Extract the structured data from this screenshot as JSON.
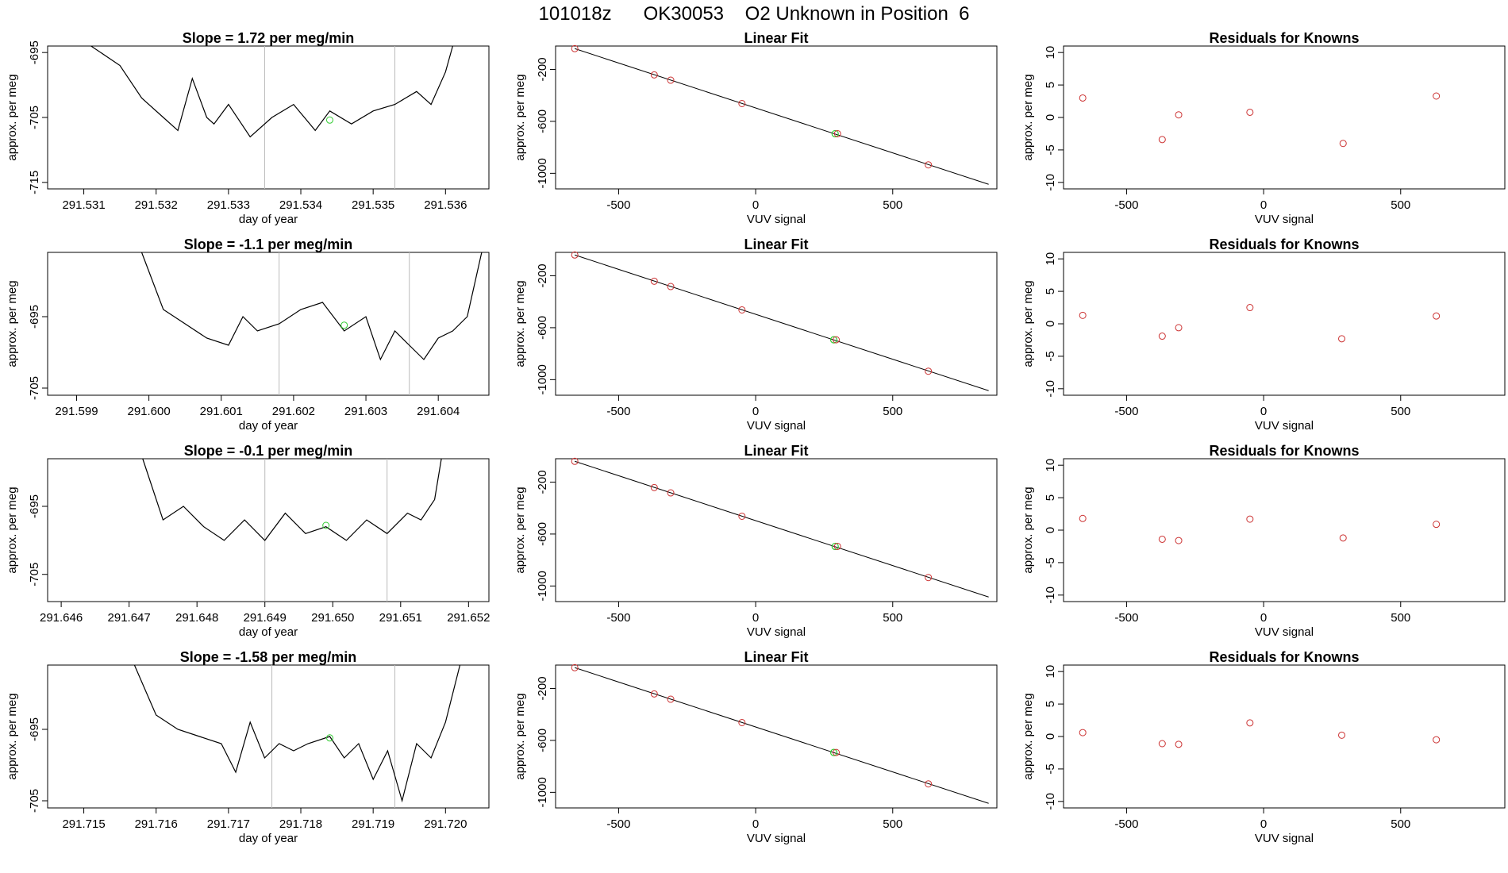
{
  "header": {
    "title": "101018z      OK30053    O2 Unknown in Position  6"
  },
  "chart_data": [
    {
      "type": "line",
      "panel": "timeseries",
      "title": "Slope =  1.72  per meg/min",
      "xlabel": "day of year",
      "ylabel": "approx. per meg",
      "xlim": [
        291.5305,
        291.5366
      ],
      "ylim": [
        -716,
        -694
      ],
      "xticks": [
        "291.531",
        "291.532",
        "291.533",
        "291.534",
        "291.535",
        "291.536"
      ],
      "yticks": [
        "-695",
        "-705",
        "-715"
      ],
      "window": [
        291.5335,
        291.5353
      ],
      "marker": {
        "x": 291.5344,
        "y": -705.4,
        "color": "#33cc33"
      },
      "series": [
        {
          "color": "#000000",
          "x": [
            291.5311,
            291.5315,
            291.5318,
            291.5321,
            291.5323,
            291.5325,
            291.5327,
            291.5328,
            291.533,
            291.5333,
            291.5336,
            291.5339,
            291.5342,
            291.5344,
            291.5347,
            291.535,
            291.5353,
            291.5356,
            291.5358,
            291.536,
            291.5361
          ],
          "y": [
            -694,
            -697,
            -702,
            -705,
            -707,
            -699,
            -705,
            -706,
            -703,
            -708,
            -705,
            -703,
            -707,
            -704,
            -706,
            -704,
            -703,
            -701,
            -703,
            -698,
            -694
          ]
        }
      ]
    },
    {
      "type": "scatter",
      "panel": "linear-fit",
      "title": "Linear Fit",
      "xlabel": "VUV signal",
      "ylabel": "approx. per meg",
      "xlim": [
        -730,
        880
      ],
      "ylim": [
        -1120,
        -20
      ],
      "xticks": [
        "-500",
        "0",
        "500"
      ],
      "yticks": [
        "-200",
        "-600",
        "-1000"
      ],
      "line": {
        "x": [
          -660,
          850
        ],
        "y": [
          -40,
          -1085
        ]
      },
      "points": {
        "x": [
          -660,
          -370,
          -310,
          -50,
          630
        ],
        "y": [
          -40,
          -242,
          -283,
          -463,
          -935
        ],
        "color": "#cc3333"
      },
      "unknown": {
        "x": 290,
        "y": -695,
        "color": "#33cc33"
      }
    },
    {
      "type": "scatter",
      "panel": "residuals",
      "title": "Residuals for Knowns",
      "xlabel": "VUV signal",
      "ylabel": "approx. per meg",
      "xlim": [
        -730,
        880
      ],
      "ylim": [
        -11,
        11
      ],
      "xticks": [
        "-500",
        "0",
        "500"
      ],
      "yticks": [
        "10",
        "5",
        "0",
        "-5",
        "-10"
      ],
      "points": {
        "x": [
          -660,
          -370,
          -310,
          -50,
          290,
          630
        ],
        "y": [
          3.0,
          -3.4,
          0.4,
          0.8,
          -4.0,
          3.3
        ],
        "color": "#cc3333"
      }
    },
    {
      "type": "line",
      "panel": "timeseries",
      "title": "Slope =  -1.1  per meg/min",
      "xlabel": "day of year",
      "ylabel": "approx. per meg",
      "xlim": [
        291.5986,
        291.6047
      ],
      "ylim": [
        -706,
        -686
      ],
      "xticks": [
        "291.599",
        "291.600",
        "291.601",
        "291.602",
        "291.603",
        "291.604"
      ],
      "yticks": [
        "-695",
        "-705"
      ],
      "window": [
        291.6018,
        291.6036
      ],
      "marker": {
        "x": 291.6027,
        "y": -696.2,
        "color": "#33cc33"
      },
      "series": [
        {
          "color": "#000000",
          "x": [
            291.5999,
            291.6002,
            291.6005,
            291.6008,
            291.6011,
            291.6013,
            291.6015,
            291.6018,
            291.6021,
            291.6024,
            291.6027,
            291.603,
            291.6032,
            291.6034,
            291.6036,
            291.6038,
            291.604,
            291.6042,
            291.6044,
            291.6046
          ],
          "y": [
            -686,
            -694,
            -696,
            -698,
            -699,
            -695,
            -697,
            -696,
            -694,
            -693,
            -697,
            -695,
            -701,
            -697,
            -699,
            -701,
            -698,
            -697,
            -695,
            -686
          ]
        }
      ]
    },
    {
      "type": "scatter",
      "panel": "linear-fit",
      "title": "Linear Fit",
      "xlabel": "VUV signal",
      "ylabel": "approx. per meg",
      "xlim": [
        -730,
        880
      ],
      "ylim": [
        -1120,
        -20
      ],
      "xticks": [
        "-500",
        "0",
        "500"
      ],
      "yticks": [
        "-200",
        "-600",
        "-1000"
      ],
      "line": {
        "x": [
          -660,
          850
        ],
        "y": [
          -40,
          -1085
        ]
      },
      "points": {
        "x": [
          -660,
          -370,
          -310,
          -50,
          630
        ],
        "y": [
          -40,
          -242,
          -283,
          -463,
          -935
        ],
        "color": "#cc3333"
      },
      "unknown": {
        "x": 285,
        "y": -693,
        "color": "#33cc33"
      }
    },
    {
      "type": "scatter",
      "panel": "residuals",
      "title": "Residuals for Knowns",
      "xlabel": "VUV signal",
      "ylabel": "approx. per meg",
      "xlim": [
        -730,
        880
      ],
      "ylim": [
        -11,
        11
      ],
      "xticks": [
        "-500",
        "0",
        "500"
      ],
      "yticks": [
        "10",
        "5",
        "0",
        "-5",
        "-10"
      ],
      "points": {
        "x": [
          -660,
          -370,
          -310,
          -50,
          285,
          630
        ],
        "y": [
          1.3,
          -1.9,
          -0.6,
          2.5,
          -2.3,
          1.2
        ],
        "color": "#cc3333"
      }
    },
    {
      "type": "line",
      "panel": "timeseries",
      "title": "Slope =  -0.1  per meg/min",
      "xlabel": "day of year",
      "ylabel": "approx. per meg",
      "xlim": [
        291.6458,
        291.6523
      ],
      "ylim": [
        -709,
        -688
      ],
      "xticks": [
        "291.646",
        "291.647",
        "291.648",
        "291.649",
        "291.650",
        "291.651",
        "291.652"
      ],
      "yticks": [
        "-695",
        "-705"
      ],
      "window": [
        291.649,
        291.6508
      ],
      "marker": {
        "x": 291.6499,
        "y": -697.8,
        "color": "#33cc33"
      },
      "series": [
        {
          "color": "#000000",
          "x": [
            291.6472,
            291.6475,
            291.6478,
            291.6481,
            291.6484,
            291.6487,
            291.649,
            291.6493,
            291.6496,
            291.6499,
            291.6502,
            291.6505,
            291.6508,
            291.6511,
            291.6513,
            291.6515,
            291.6516
          ],
          "y": [
            -688,
            -697,
            -695,
            -698,
            -700,
            -697,
            -700,
            -696,
            -699,
            -698,
            -700,
            -697,
            -699,
            -696,
            -697,
            -694,
            -688
          ]
        }
      ]
    },
    {
      "type": "scatter",
      "panel": "linear-fit",
      "title": "Linear Fit",
      "xlabel": "VUV signal",
      "ylabel": "approx. per meg",
      "xlim": [
        -730,
        880
      ],
      "ylim": [
        -1120,
        -20
      ],
      "xticks": [
        "-500",
        "0",
        "500"
      ],
      "yticks": [
        "-200",
        "-600",
        "-1000"
      ],
      "line": {
        "x": [
          -660,
          850
        ],
        "y": [
          -40,
          -1085
        ]
      },
      "points": {
        "x": [
          -660,
          -370,
          -310,
          -50,
          630
        ],
        "y": [
          -40,
          -242,
          -283,
          -463,
          -935
        ],
        "color": "#cc3333"
      },
      "unknown": {
        "x": 290,
        "y": -695,
        "color": "#33cc33"
      }
    },
    {
      "type": "scatter",
      "panel": "residuals",
      "title": "Residuals for Knowns",
      "xlabel": "VUV signal",
      "ylabel": "approx. per meg",
      "xlim": [
        -730,
        880
      ],
      "ylim": [
        -11,
        11
      ],
      "xticks": [
        "-500",
        "0",
        "500"
      ],
      "yticks": [
        "10",
        "5",
        "0",
        "-5",
        "-10"
      ],
      "points": {
        "x": [
          -660,
          -370,
          -310,
          -50,
          290,
          630
        ],
        "y": [
          1.8,
          -1.4,
          -1.6,
          1.7,
          -1.2,
          0.9
        ],
        "color": "#cc3333"
      }
    },
    {
      "type": "line",
      "panel": "timeseries",
      "title": "Slope =  -1.58  per meg/min",
      "xlabel": "day of year",
      "ylabel": "approx. per meg",
      "xlim": [
        291.7145,
        291.7206
      ],
      "ylim": [
        -706,
        -686
      ],
      "xticks": [
        "291.715",
        "291.716",
        "291.717",
        "291.718",
        "291.719",
        "291.720"
      ],
      "yticks": [
        "-695",
        "-705"
      ],
      "window": [
        291.7176,
        291.7193
      ],
      "marker": {
        "x": 291.7184,
        "y": -696.2,
        "color": "#33cc33"
      },
      "series": [
        {
          "color": "#000000",
          "x": [
            291.7157,
            291.716,
            291.7163,
            291.7166,
            291.7169,
            291.7171,
            291.7173,
            291.7175,
            291.7177,
            291.7179,
            291.7181,
            291.7184,
            291.7186,
            291.7188,
            291.719,
            291.7192,
            291.7194,
            291.7196,
            291.7198,
            291.72,
            291.7202
          ],
          "y": [
            -686,
            -693,
            -695,
            -696,
            -697,
            -701,
            -694,
            -699,
            -697,
            -698,
            -697,
            -696,
            -699,
            -697,
            -702,
            -698,
            -705,
            -697,
            -699,
            -694,
            -686
          ]
        }
      ]
    },
    {
      "type": "scatter",
      "panel": "linear-fit",
      "title": "Linear Fit",
      "xlabel": "VUV signal",
      "ylabel": "approx. per meg",
      "xlim": [
        -730,
        880
      ],
      "ylim": [
        -1120,
        -20
      ],
      "xticks": [
        "-500",
        "0",
        "500"
      ],
      "yticks": [
        "-200",
        "-600",
        "-1000"
      ],
      "line": {
        "x": [
          -660,
          850
        ],
        "y": [
          -40,
          -1085
        ]
      },
      "points": {
        "x": [
          -660,
          -370,
          -310,
          -50,
          630
        ],
        "y": [
          -40,
          -242,
          -283,
          -463,
          -935
        ],
        "color": "#cc3333"
      },
      "unknown": {
        "x": 285,
        "y": -693,
        "color": "#33cc33"
      }
    },
    {
      "type": "scatter",
      "panel": "residuals",
      "title": "Residuals for Knowns",
      "xlabel": "VUV signal",
      "ylabel": "approx. per meg",
      "xlim": [
        -730,
        880
      ],
      "ylim": [
        -11,
        11
      ],
      "xticks": [
        "-500",
        "0",
        "500"
      ],
      "yticks": [
        "10",
        "5",
        "0",
        "-5",
        "-10"
      ],
      "points": {
        "x": [
          -660,
          -370,
          -310,
          -50,
          285,
          630
        ],
        "y": [
          0.6,
          -1.1,
          -1.2,
          2.1,
          0.2,
          -0.5
        ],
        "color": "#cc3333"
      }
    }
  ]
}
